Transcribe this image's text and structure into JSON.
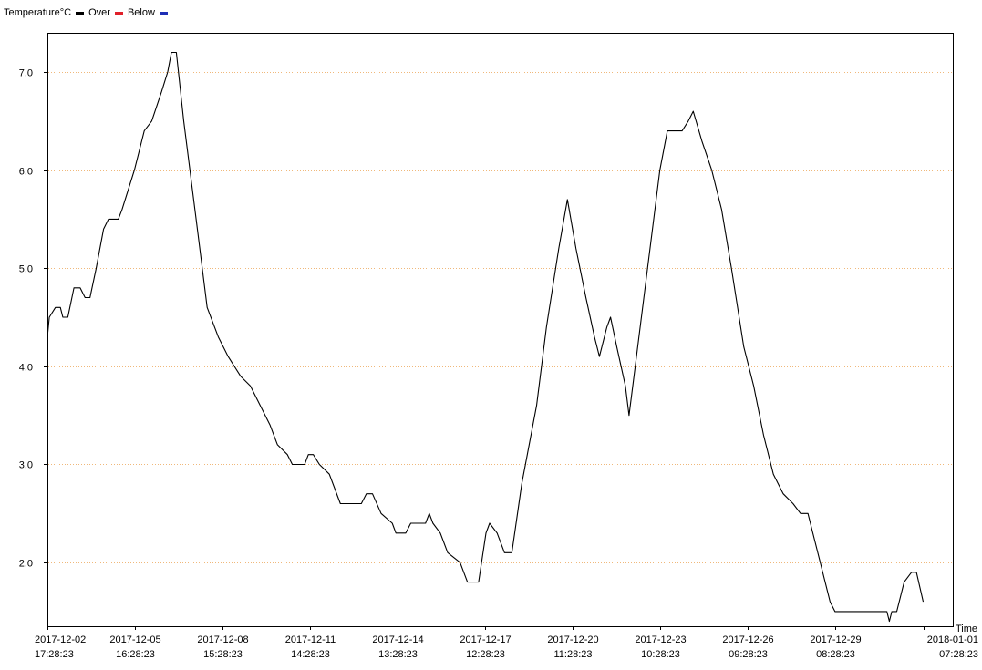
{
  "legend": {
    "entries": [
      {
        "label": "Temperature°C",
        "color": "#000000"
      },
      {
        "label": "Over",
        "color": "#e0202a"
      },
      {
        "label": "Below",
        "color": "#1f2fb5"
      }
    ]
  },
  "chart_data": {
    "type": "line",
    "title": "",
    "xlabel": "Time",
    "ylabel": "",
    "ylim": [
      1.35,
      7.4
    ],
    "xlim_days": [
      0,
      30.583
    ],
    "grid": "horizontal dotted",
    "colors": {
      "line": "#000000",
      "grid": "#f0b87a"
    },
    "y_ticks": [
      "2.0",
      "3.0",
      "4.0",
      "5.0",
      "6.0",
      "7.0"
    ],
    "x_ticks": [
      {
        "date": "2017-12-02",
        "time": "17:28:23"
      },
      {
        "date": "2017-12-05",
        "time": "16:28:23"
      },
      {
        "date": "2017-12-08",
        "time": "15:28:23"
      },
      {
        "date": "2017-12-11",
        "time": "14:28:23"
      },
      {
        "date": "2017-12-14",
        "time": "13:28:23"
      },
      {
        "date": "2017-12-17",
        "time": "12:28:23"
      },
      {
        "date": "2017-12-20",
        "time": "11:28:23"
      },
      {
        "date": "2017-12-23",
        "time": "10:28:23"
      },
      {
        "date": "2017-12-26",
        "time": "09:28:23"
      },
      {
        "date": "2017-12-29",
        "time": "08:28:23"
      },
      {
        "date": "2018-01-01",
        "time": "07:28:23"
      }
    ],
    "series": [
      {
        "name": "Temperature°C",
        "points": [
          [
            "2017-12-02 17:28",
            4.3
          ],
          [
            "2017-12-02 19:00",
            4.5
          ],
          [
            "2017-12-03 00:00",
            4.6
          ],
          [
            "2017-12-03 04:00",
            4.6
          ],
          [
            "2017-12-03 06:00",
            4.5
          ],
          [
            "2017-12-03 10:00",
            4.5
          ],
          [
            "2017-12-03 15:00",
            4.8
          ],
          [
            "2017-12-03 20:00",
            4.8
          ],
          [
            "2017-12-04 00:00",
            4.7
          ],
          [
            "2017-12-04 04:00",
            4.7
          ],
          [
            "2017-12-04 09:00",
            5.0
          ],
          [
            "2017-12-04 15:00",
            5.4
          ],
          [
            "2017-12-04 19:00",
            5.5
          ],
          [
            "2017-12-05 03:00",
            5.5
          ],
          [
            "2017-12-05 06:00",
            5.6
          ],
          [
            "2017-12-05 16:00",
            6.0
          ],
          [
            "2017-12-06 00:00",
            6.4
          ],
          [
            "2017-12-06 06:00",
            6.5
          ],
          [
            "2017-12-06 14:00",
            6.8
          ],
          [
            "2017-12-06 19:00",
            7.0
          ],
          [
            "2017-12-06 22:00",
            7.2
          ],
          [
            "2017-12-07 02:00",
            7.2
          ],
          [
            "2017-12-07 08:00",
            6.5
          ],
          [
            "2017-12-07 18:00",
            5.5
          ],
          [
            "2017-12-08 03:00",
            4.6
          ],
          [
            "2017-12-08 12:00",
            4.3
          ],
          [
            "2017-12-08 20:00",
            4.1
          ],
          [
            "2017-12-09 06:00",
            3.9
          ],
          [
            "2017-12-09 14:00",
            3.8
          ],
          [
            "2017-12-09 22:00",
            3.6
          ],
          [
            "2017-12-10 06:00",
            3.4
          ],
          [
            "2017-12-10 12:00",
            3.2
          ],
          [
            "2017-12-10 20:00",
            3.1
          ],
          [
            "2017-12-11 00:00",
            3.0
          ],
          [
            "2017-12-11 10:00",
            3.0
          ],
          [
            "2017-12-11 13:00",
            3.1
          ],
          [
            "2017-12-11 17:00",
            3.1
          ],
          [
            "2017-12-11 22:00",
            3.0
          ],
          [
            "2017-12-12 06:00",
            2.9
          ],
          [
            "2017-12-12 15:00",
            2.6
          ],
          [
            "2017-12-13 08:00",
            2.6
          ],
          [
            "2017-12-13 12:00",
            2.7
          ],
          [
            "2017-12-13 17:00",
            2.7
          ],
          [
            "2017-12-14 00:00",
            2.5
          ],
          [
            "2017-12-14 09:00",
            2.4
          ],
          [
            "2017-12-14 12:00",
            2.3
          ],
          [
            "2017-12-14 20:00",
            2.3
          ],
          [
            "2017-12-15 00:00",
            2.4
          ],
          [
            "2017-12-15 12:00",
            2.4
          ],
          [
            "2017-12-15 15:00",
            2.5
          ],
          [
            "2017-12-15 18:00",
            2.4
          ],
          [
            "2017-12-16 00:00",
            2.3
          ],
          [
            "2017-12-16 06:00",
            2.1
          ],
          [
            "2017-12-16 16:00",
            2.0
          ],
          [
            "2017-12-16 22:00",
            1.8
          ],
          [
            "2017-12-17 07:00",
            1.8
          ],
          [
            "2017-12-17 13:00",
            2.3
          ],
          [
            "2017-12-17 16:00",
            2.4
          ],
          [
            "2017-12-17 22:00",
            2.3
          ],
          [
            "2017-12-18 04:00",
            2.1
          ],
          [
            "2017-12-18 10:00",
            2.1
          ],
          [
            "2017-12-18 18:00",
            2.8
          ],
          [
            "2017-12-19 06:00",
            3.6
          ],
          [
            "2017-12-19 14:00",
            4.4
          ],
          [
            "2017-12-20 00:00",
            5.2
          ],
          [
            "2017-12-20 07:00",
            5.7
          ],
          [
            "2017-12-20 14:00",
            5.2
          ],
          [
            "2017-12-20 22:00",
            4.7
          ],
          [
            "2017-12-21 05:00",
            4.3
          ],
          [
            "2017-12-21 09:00",
            4.1
          ],
          [
            "2017-12-21 15:00",
            4.4
          ],
          [
            "2017-12-21 18:00",
            4.5
          ],
          [
            "2017-12-21 23:00",
            4.2
          ],
          [
            "2017-12-22 06:00",
            3.8
          ],
          [
            "2017-12-22 09:00",
            3.5
          ],
          [
            "2017-12-22 16:00",
            4.2
          ],
          [
            "2017-12-23 00:00",
            5.0
          ],
          [
            "2017-12-23 10:00",
            6.0
          ],
          [
            "2017-12-23 16:00",
            6.4
          ],
          [
            "2017-12-24 04:00",
            6.4
          ],
          [
            "2017-12-24 09:00",
            6.5
          ],
          [
            "2017-12-24 13:00",
            6.6
          ],
          [
            "2017-12-24 20:00",
            6.3
          ],
          [
            "2017-12-25 04:00",
            6.0
          ],
          [
            "2017-12-25 12:00",
            5.6
          ],
          [
            "2017-12-25 20:00",
            5.0
          ],
          [
            "2017-12-26 06:00",
            4.2
          ],
          [
            "2017-12-26 14:00",
            3.8
          ],
          [
            "2017-12-26 22:00",
            3.3
          ],
          [
            "2017-12-27 06:00",
            2.9
          ],
          [
            "2017-12-27 14:00",
            2.7
          ],
          [
            "2017-12-27 22:00",
            2.6
          ],
          [
            "2017-12-28 04:00",
            2.5
          ],
          [
            "2017-12-28 10:00",
            2.5
          ],
          [
            "2017-12-28 16:00",
            2.2
          ],
          [
            "2017-12-28 22:00",
            1.9
          ],
          [
            "2017-12-29 04:00",
            1.6
          ],
          [
            "2017-12-29 08:00",
            1.5
          ],
          [
            "2017-12-31 02:00",
            1.5
          ],
          [
            "2017-12-31 04:00",
            1.4
          ],
          [
            "2017-12-31 06:00",
            1.5
          ],
          [
            "2017-12-31 10:00",
            1.5
          ],
          [
            "2017-12-31 16:00",
            1.8
          ],
          [
            "2017-12-31 22:00",
            1.9
          ],
          [
            "2018-01-01 02:00",
            1.9
          ],
          [
            "2018-01-01 07:28",
            1.6
          ]
        ]
      }
    ]
  }
}
